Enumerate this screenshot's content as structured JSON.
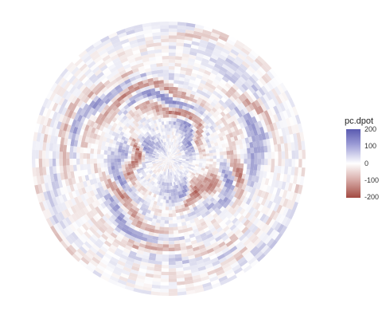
{
  "chart_data": {
    "type": "heatmap",
    "projection": "polar",
    "title": "",
    "xlabel": "",
    "ylabel": "",
    "legend": {
      "title": "pc.dpot",
      "placement": "right",
      "range": [
        -200,
        200
      ],
      "ticks": [
        200,
        100,
        0,
        -100,
        -200
      ],
      "tick_labels": [
        "200",
        "100",
        "0",
        "-100",
        "-200"
      ],
      "colors": {
        "high": "#5a5ab0",
        "mid": "#ffffff",
        "low": "#a24a42"
      }
    },
    "grid": false,
    "ring_pattern": [
      {
        "r": 0.08,
        "value": 30
      },
      {
        "r": 0.22,
        "value": 120
      },
      {
        "r": 0.32,
        "value": -150
      },
      {
        "r": 0.42,
        "value": 130
      },
      {
        "r": 0.52,
        "value": -140
      },
      {
        "r": 0.62,
        "value": 110
      },
      {
        "r": 0.72,
        "value": -90
      },
      {
        "r": 0.82,
        "value": 60
      },
      {
        "r": 0.92,
        "value": -50
      },
      {
        "r": 1.0,
        "value": 40
      }
    ]
  }
}
